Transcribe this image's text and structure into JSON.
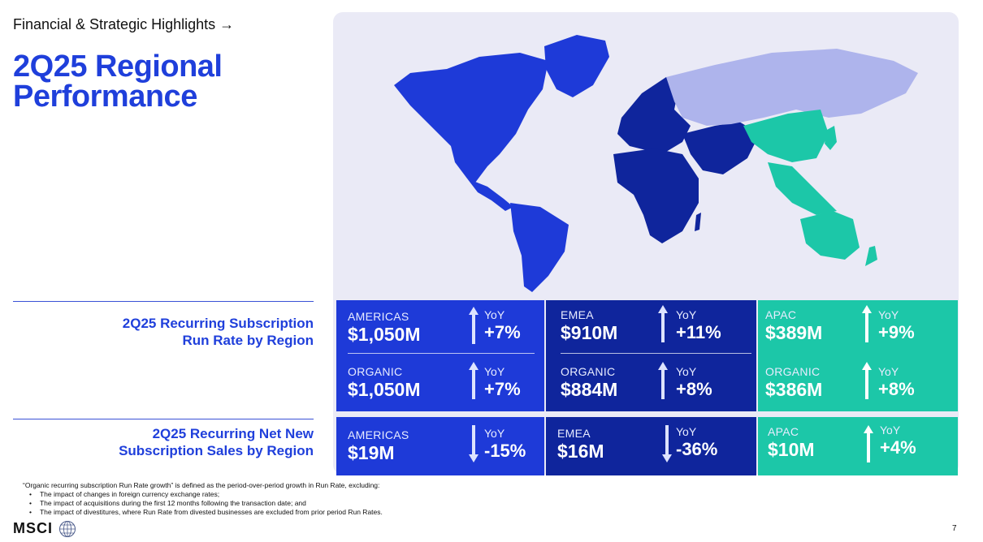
{
  "header": {
    "breadcrumb": "Financial & Strategic Highlights →",
    "title_line1": "2Q25 Regional",
    "title_line2": "Performance"
  },
  "sections": {
    "run_rate_line1": "2Q25 Recurring Subscription",
    "run_rate_line2": "Run Rate by Region",
    "sales_line1": "2Q25 Recurring Net New",
    "sales_line2": "Subscription Sales by Region"
  },
  "run_rate": {
    "americas": {
      "label": "AMERICAS",
      "value": "$1,050M",
      "yoy_label": "YoY",
      "yoy": "+7%",
      "organic_label": "ORGANIC",
      "organic_value": "$1,050M",
      "organic_yoy_label": "YoY",
      "organic_yoy": "+7%"
    },
    "emea": {
      "label": "EMEA",
      "value": "$910M",
      "yoy_label": "YoY",
      "yoy": "+11%",
      "organic_label": "ORGANIC",
      "organic_value": "$884M",
      "organic_yoy_label": "YoY",
      "organic_yoy": "+8%"
    },
    "apac": {
      "label": "APAC",
      "value": "$389M",
      "yoy_label": "YoY",
      "yoy": "+9%",
      "organic_label": "ORGANIC",
      "organic_value": "$386M",
      "organic_yoy_label": "YoY",
      "organic_yoy": "+8%"
    }
  },
  "net_new": {
    "americas": {
      "label": "AMERICAS",
      "value": "$19M",
      "yoy_label": "YoY",
      "yoy": "-15%"
    },
    "emea": {
      "label": "EMEA",
      "value": "$16M",
      "yoy_label": "YoY",
      "yoy": "-36%"
    },
    "apac": {
      "label": "APAC",
      "value": "$10M",
      "yoy_label": "YoY",
      "yoy": "+4%"
    }
  },
  "footnote": {
    "intro": "“Organic recurring subscription Run Rate growth” is defined as the period-over-period growth in Run Rate, excluding:",
    "items": [
      "The impact of changes in foreign currency exchange rates;",
      "The impact of acquisitions during the first 12 months following the transaction date; and",
      "The impact of divestitures, where Run Rate from divested businesses are excluded from prior period Run Rates."
    ]
  },
  "footer": {
    "logo": "MSCI",
    "page": "7"
  },
  "colors": {
    "americas": "#1e3ad8",
    "emea": "#0f259c",
    "apac": "#1cc7a8",
    "russia": "#aeb4ec",
    "title": "#1f3fdb"
  }
}
